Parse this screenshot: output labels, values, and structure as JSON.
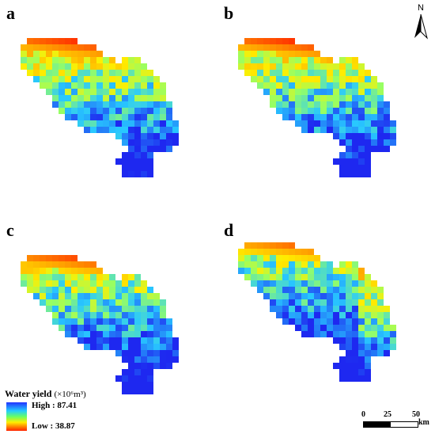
{
  "panels": [
    {
      "label": "a",
      "variant": "a"
    },
    {
      "label": "b",
      "variant": "b"
    },
    {
      "label": "c",
      "variant": "c"
    },
    {
      "label": "d",
      "variant": "d"
    }
  ],
  "north_arrow": {
    "label": "N"
  },
  "legend": {
    "title": "Water yield",
    "unit": "(×10⁶m³)",
    "high": "High : 87.41",
    "low": "Low : 38.87",
    "colors": [
      "#2233ff",
      "#22ccff",
      "#66ff66",
      "#ffee00",
      "#ff2200"
    ]
  },
  "scalebar": {
    "tick_0": "0",
    "tick_25": "25",
    "tick_50": "50",
    "unit": "km"
  }
}
